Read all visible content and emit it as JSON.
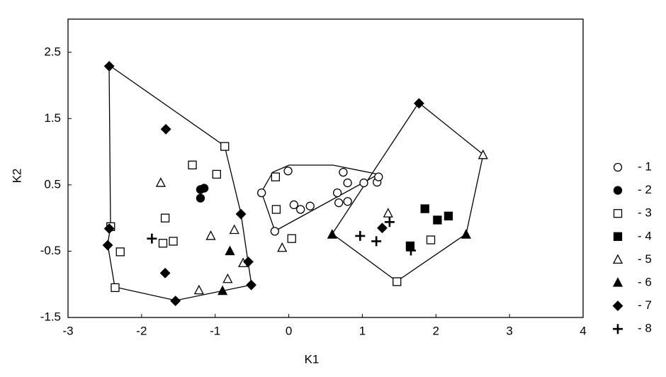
{
  "chart_data": {
    "type": "scatter",
    "x_label": "K1",
    "y_label": "K2",
    "xlim": [
      -3,
      4
    ],
    "xticks": [
      -3,
      -2,
      -1,
      0,
      1,
      2,
      3,
      4
    ],
    "ylim": [
      -1.5,
      3
    ],
    "yticks": [
      -1.5,
      -0.5,
      0.5,
      1.5,
      2.5
    ],
    "series": [
      {
        "name": "- 1",
        "marker": "circle-open",
        "color": "#000",
        "x": [
          -0.37,
          -0.01,
          -0.19,
          0.07,
          0.16,
          0.29,
          0.66,
          0.68,
          0.74,
          0.8,
          0.8,
          1.02,
          1.2,
          1.22
        ],
        "values": [
          0.38,
          0.71,
          -0.2,
          0.2,
          0.13,
          0.18,
          0.38,
          0.23,
          0.69,
          0.53,
          0.25,
          0.53,
          0.54,
          0.62
        ]
      },
      {
        "name": "- 2",
        "marker": "circle-filled",
        "color": "#000",
        "x": [
          -1.2,
          -1.15,
          -1.2
        ],
        "values": [
          0.43,
          0.45,
          0.3
        ]
      },
      {
        "name": "- 3",
        "marker": "square-open",
        "color": "#000",
        "x": [
          -2.42,
          -2.29,
          -2.36,
          -1.68,
          -1.71,
          -1.57,
          -1.31,
          -0.98,
          -0.87,
          -0.18,
          -0.17,
          0.04,
          1.47,
          1.93
        ],
        "values": [
          -0.13,
          -0.51,
          -1.05,
          0.0,
          -0.38,
          -0.35,
          0.8,
          0.66,
          1.08,
          0.62,
          0.13,
          -0.31,
          -0.96,
          -0.33
        ]
      },
      {
        "name": "- 4",
        "marker": "square-filled",
        "color": "#000",
        "x": [
          1.85,
          2.02,
          2.17,
          1.65
        ],
        "values": [
          0.14,
          -0.03,
          0.03,
          -0.42
        ]
      },
      {
        "name": "- 5",
        "marker": "triangle-open",
        "color": "#000",
        "x": [
          -1.74,
          -1.06,
          -0.74,
          -1.22,
          -0.83,
          -0.62,
          -0.09,
          1.35,
          2.64
        ],
        "values": [
          0.53,
          -0.27,
          -0.18,
          -1.09,
          -0.92,
          -0.68,
          -0.45,
          0.07,
          0.95
        ]
      },
      {
        "name": "- 6",
        "marker": "triangle-filled",
        "color": "#000",
        "x": [
          -0.8,
          -0.9,
          0.59,
          2.41
        ],
        "values": [
          -0.5,
          -1.1,
          -0.25,
          -0.25
        ]
      },
      {
        "name": "- 7",
        "marker": "diamond-filled",
        "color": "#000",
        "x": [
          -2.44,
          -1.67,
          -2.44,
          -2.46,
          -1.68,
          -1.54,
          -0.65,
          -0.55,
          -0.51,
          1.77,
          1.27
        ],
        "values": [
          2.29,
          1.34,
          -0.16,
          -0.41,
          -0.83,
          -1.25,
          0.06,
          -0.66,
          -1.01,
          1.73,
          -0.15
        ]
      },
      {
        "name": "- 8",
        "marker": "plus",
        "color": "#000",
        "x": [
          -1.86,
          0.97,
          1.19,
          1.37,
          1.66
        ],
        "values": [
          -0.31,
          -0.27,
          -0.35,
          -0.06,
          -0.49
        ]
      }
    ]
  }
}
